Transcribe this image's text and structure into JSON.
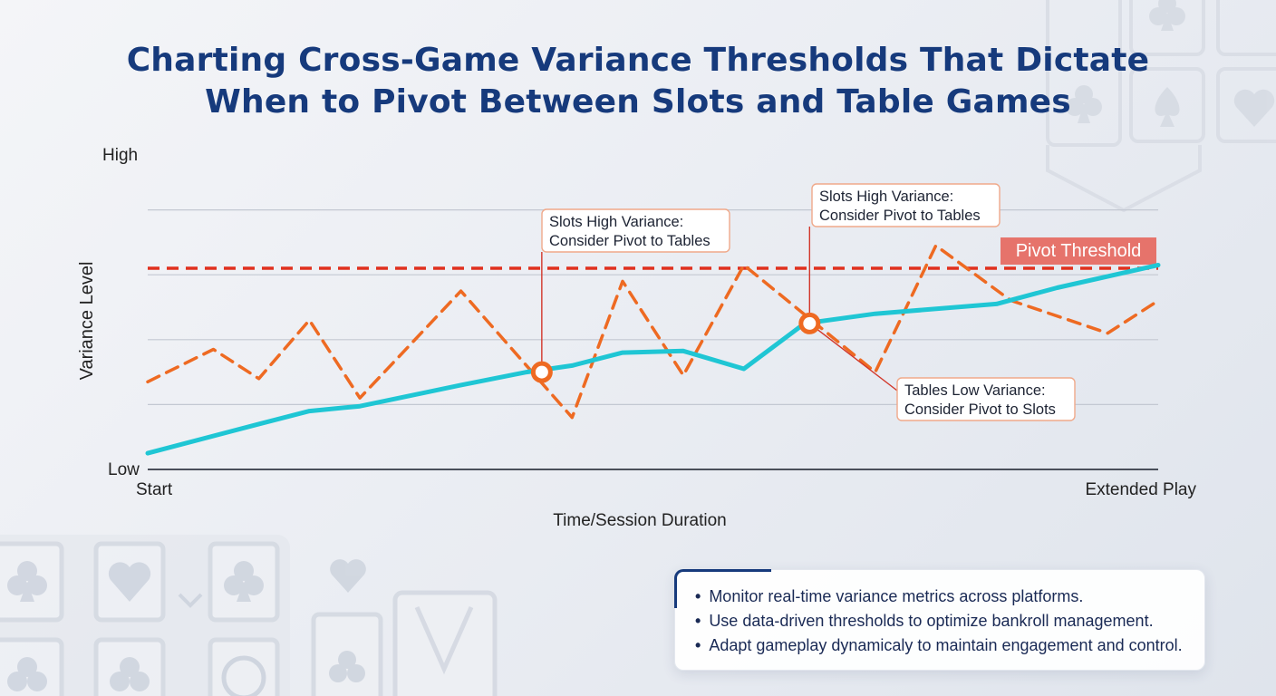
{
  "header": {
    "title_line1": "Charting Cross-Game Variance Thresholds That Dictate",
    "title_line2": "When to Pivot Between Slots and Table Games"
  },
  "colors": {
    "title": "#163a7c",
    "slots_series": "#ee6a22",
    "tables_series": "#1fc6d4",
    "threshold": "#e0301e",
    "threshold_label_bg": "#e6736b",
    "gridline": "#c3c8d2",
    "axis": "#4a4f5a"
  },
  "chart_data": {
    "type": "line",
    "xlabel": "Time/Session Duration",
    "ylabel": "Variance Level",
    "x_tick_labels": [
      "Start",
      "Extended Play"
    ],
    "y_tick_labels": [
      "High",
      "Low"
    ],
    "xlim": [
      0,
      100
    ],
    "ylim": [
      0,
      100
    ],
    "grid": true,
    "series": [
      {
        "style": "dashed",
        "color": "#ee6a22",
        "points": [
          [
            0,
            27
          ],
          [
            6.5,
            37
          ],
          [
            11,
            28
          ],
          [
            16,
            46
          ],
          [
            21,
            22
          ],
          [
            31,
            55
          ],
          [
            42,
            16
          ],
          [
            47,
            58
          ],
          [
            53,
            29
          ],
          [
            59,
            63
          ],
          [
            72,
            30
          ],
          [
            78,
            69
          ],
          [
            85,
            53
          ],
          [
            85.5,
            52
          ],
          [
            95,
            42
          ],
          [
            100,
            52
          ]
        ]
      },
      {
        "style": "solid",
        "color": "#1fc6d4",
        "points": [
          [
            0,
            5
          ],
          [
            11,
            14
          ],
          [
            16,
            18
          ],
          [
            21,
            19.5
          ],
          [
            31,
            26
          ],
          [
            37.5,
            30
          ],
          [
            42,
            32
          ],
          [
            47,
            36
          ],
          [
            53,
            36.5
          ],
          [
            59,
            31
          ],
          [
            65,
            45
          ],
          [
            72,
            48
          ],
          [
            84,
            51
          ],
          [
            90,
            56
          ],
          [
            100,
            63
          ]
        ]
      }
    ],
    "threshold": {
      "label": "Pivot Threshold",
      "y": 62,
      "style": "dashed",
      "color": "#e0301e"
    },
    "markers": [
      {
        "x": 39,
        "y": 30,
        "target": 0
      },
      {
        "x": 65.5,
        "y": 45,
        "target": 1
      }
    ],
    "annotations": [
      {
        "lines": [
          "Slots High Variance:",
          "Consider Pivot to Tables"
        ],
        "marker": 0
      },
      {
        "lines": [
          "Slots High Variance:",
          "Consider Pivot to Tables"
        ],
        "marker": 1
      },
      {
        "lines": [
          "Tables Low Variance:",
          "Consider Pivot to Slots"
        ],
        "marker": 1
      }
    ]
  },
  "legend_panel": {
    "items": [
      "Monitor real-time variance metrics across platforms.",
      "Use data-driven thresholds to optimize bankroll management.",
      "Adapt gameplay dynamicaly to maintain engagement and control."
    ]
  },
  "decorations": {
    "icons": [
      "club-icon",
      "heart-icon",
      "spade-icon",
      "circle-icon",
      "playing-card-icon"
    ]
  }
}
